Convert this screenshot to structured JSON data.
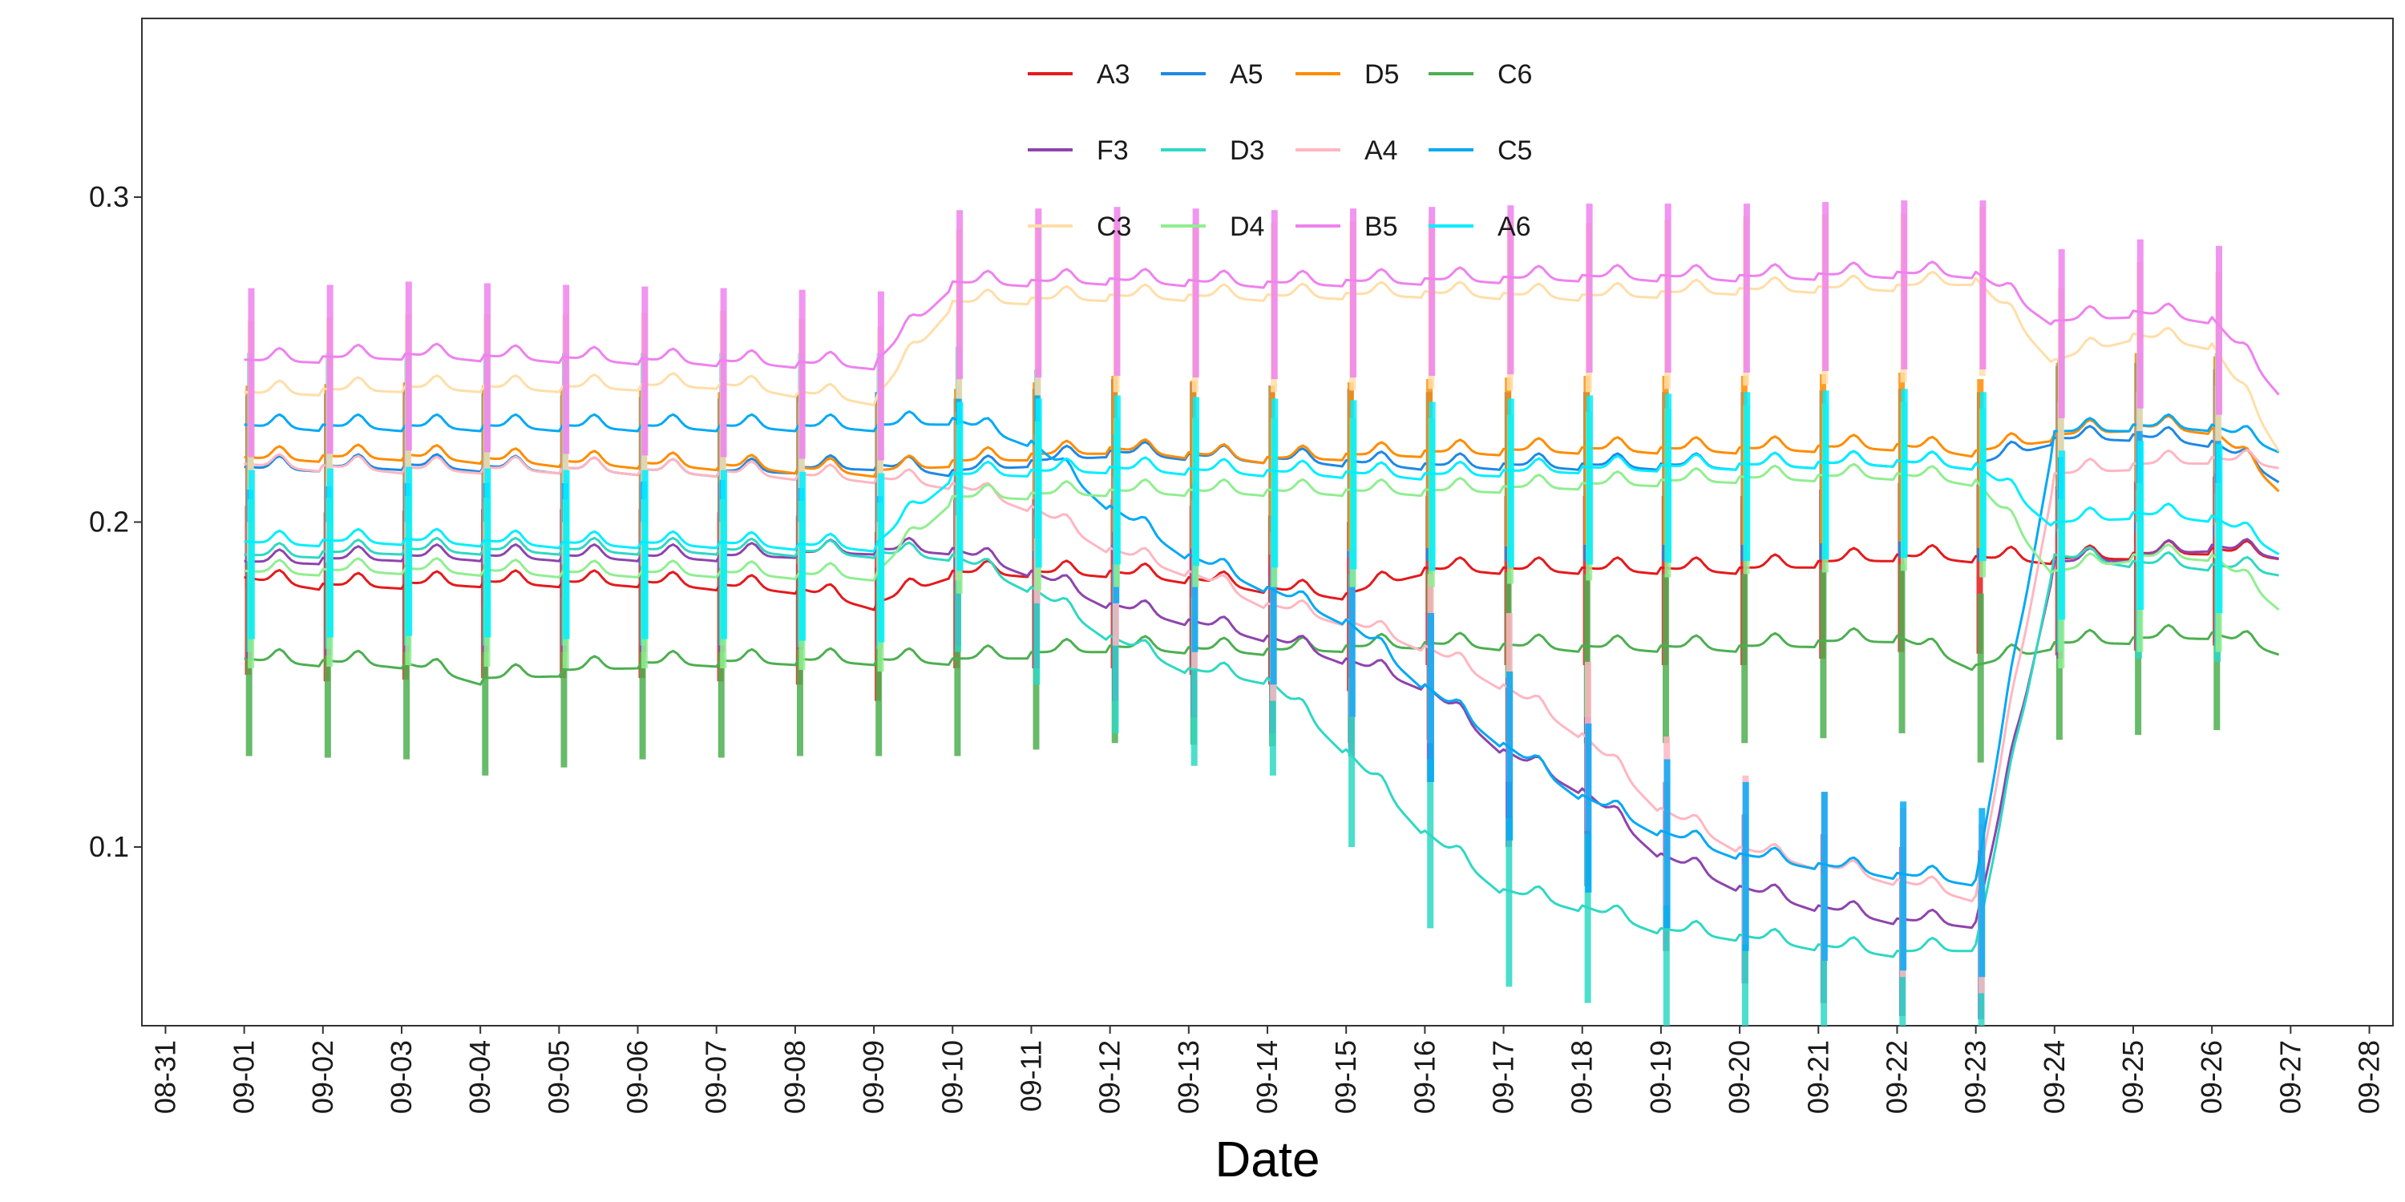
{
  "chart_data": {
    "type": "line",
    "title": "",
    "xlabel": "Date",
    "ylabel": "",
    "xlim": [
      "08-31",
      "09-28"
    ],
    "ylim": [
      0.045,
      0.355
    ],
    "x_ticks": [
      "08-31",
      "09-01",
      "09-02",
      "09-03",
      "09-04",
      "09-05",
      "09-06",
      "09-07",
      "09-08",
      "09-09",
      "09-10",
      "09-11",
      "09-12",
      "09-13",
      "09-14",
      "09-15",
      "09-16",
      "09-17",
      "09-18",
      "09-19",
      "09-20",
      "09-21",
      "09-22",
      "09-23",
      "09-24",
      "09-25",
      "09-26",
      "09-27",
      "09-28"
    ],
    "y_ticks": [
      0.1,
      0.2,
      0.3
    ],
    "y_tick_labels": [
      "0.1",
      "0.2",
      "0.3"
    ],
    "grid": false,
    "legend_position": "top",
    "series": [
      {
        "name": "A3",
        "color": "#e41a1c",
        "x": [
          "09-01",
          "09-02",
          "09-04",
          "09-06",
          "09-08",
          "09-09",
          "09-10",
          "09-12",
          "09-13",
          "09-14",
          "09-15",
          "09-16",
          "09-18",
          "09-20",
          "09-22",
          "09-24",
          "09-26",
          "09-27"
        ],
        "values": [
          0.183,
          0.181,
          0.182,
          0.182,
          0.18,
          0.175,
          0.185,
          0.185,
          0.183,
          0.18,
          0.178,
          0.186,
          0.186,
          0.186,
          0.19,
          0.189,
          0.192,
          0.19
        ]
      },
      {
        "name": "A5",
        "color": "#1e88e5",
        "x": [
          "09-01",
          "09-03",
          "09-05",
          "09-07",
          "09-09",
          "09-10",
          "09-12",
          "09-14",
          "09-16",
          "09-18",
          "09-20",
          "09-22",
          "09-23",
          "09-24",
          "09-25",
          "09-26",
          "09-27"
        ],
        "values": [
          0.217,
          0.218,
          0.217,
          0.216,
          0.218,
          0.216,
          0.222,
          0.22,
          0.218,
          0.218,
          0.218,
          0.219,
          0.218,
          0.226,
          0.227,
          0.225,
          0.212
        ]
      },
      {
        "name": "D5",
        "color": "#ff8c00",
        "x": [
          "09-01",
          "09-03",
          "09-05",
          "09-07",
          "09-09",
          "09-10",
          "09-12",
          "09-14",
          "09-16",
          "09-18",
          "09-20",
          "09-22",
          "09-23",
          "09-24",
          "09-25",
          "09-26",
          "09-27"
        ],
        "values": [
          0.22,
          0.221,
          0.219,
          0.218,
          0.216,
          0.219,
          0.223,
          0.22,
          0.222,
          0.223,
          0.223,
          0.224,
          0.222,
          0.227,
          0.23,
          0.229,
          0.208
        ]
      },
      {
        "name": "C6",
        "color": "#4caf50",
        "x": [
          "09-01",
          "09-03",
          "09-04",
          "09-06",
          "09-08",
          "09-10",
          "09-12",
          "09-14",
          "09-16",
          "09-18",
          "09-20",
          "09-22",
          "09-23",
          "09-24",
          "09-26",
          "09-27"
        ],
        "values": [
          0.158,
          0.157,
          0.152,
          0.157,
          0.158,
          0.158,
          0.162,
          0.161,
          0.163,
          0.162,
          0.162,
          0.165,
          0.156,
          0.163,
          0.166,
          0.16
        ]
      },
      {
        "name": "F3",
        "color": "#8e44ad",
        "x": [
          "09-01",
          "09-03",
          "09-05",
          "09-07",
          "09-09",
          "09-10",
          "09-11",
          "09-12",
          "09-13",
          "09-14",
          "09-15",
          "09-16",
          "09-17",
          "09-18",
          "09-19",
          "09-20",
          "09-21",
          "09-22",
          "09-23",
          "09-24",
          "09-25",
          "09-26",
          "09-27"
        ],
        "values": [
          0.188,
          0.19,
          0.19,
          0.19,
          0.192,
          0.192,
          0.185,
          0.175,
          0.17,
          0.165,
          0.158,
          0.15,
          0.13,
          0.118,
          0.098,
          0.088,
          0.082,
          0.078,
          0.077,
          0.188,
          0.19,
          0.193,
          0.19
        ]
      },
      {
        "name": "D3",
        "color": "#2ed8c3",
        "x": [
          "09-01",
          "09-03",
          "09-05",
          "09-07",
          "09-09",
          "09-10",
          "09-11",
          "09-12",
          "09-13",
          "09-14",
          "09-15",
          "09-16",
          "09-17",
          "09-18",
          "09-19",
          "09-20",
          "09-21",
          "09-22",
          "09-23",
          "09-24",
          "09-25",
          "09-26",
          "09-27"
        ],
        "values": [
          0.19,
          0.192,
          0.192,
          0.192,
          0.191,
          0.19,
          0.18,
          0.165,
          0.155,
          0.152,
          0.13,
          0.105,
          0.087,
          0.082,
          0.075,
          0.073,
          0.07,
          0.068,
          0.07,
          0.19,
          0.188,
          0.187,
          0.185
        ]
      },
      {
        "name": "A4",
        "color": "#ffb6c1",
        "x": [
          "09-01",
          "09-03",
          "09-05",
          "09-07",
          "09-09",
          "09-10",
          "09-11",
          "09-12",
          "09-13",
          "09-14",
          "09-15",
          "09-16",
          "09-17",
          "09-18",
          "09-19",
          "09-20",
          "09-21",
          "09-22",
          "09-23",
          "09-24",
          "09-25",
          "09-26",
          "09-27"
        ],
        "values": [
          0.218,
          0.217,
          0.217,
          0.216,
          0.214,
          0.212,
          0.205,
          0.192,
          0.185,
          0.175,
          0.17,
          0.162,
          0.15,
          0.135,
          0.112,
          0.1,
          0.095,
          0.09,
          0.085,
          0.215,
          0.218,
          0.22,
          0.218
        ]
      },
      {
        "name": "C5",
        "color": "#03a9f4",
        "x": [
          "09-01",
          "09-03",
          "09-05",
          "09-07",
          "09-09",
          "09-10",
          "09-11",
          "09-12",
          "09-13",
          "09-14",
          "09-15",
          "09-16",
          "09-17",
          "09-18",
          "09-19",
          "09-20",
          "09-21",
          "09-22",
          "09-23",
          "09-24",
          "09-25",
          "09-26",
          "09-27"
        ],
        "values": [
          0.23,
          0.23,
          0.23,
          0.23,
          0.23,
          0.232,
          0.225,
          0.205,
          0.19,
          0.18,
          0.17,
          0.15,
          0.132,
          0.116,
          0.105,
          0.098,
          0.095,
          0.092,
          0.09,
          0.228,
          0.23,
          0.23,
          0.222
        ]
      },
      {
        "name": "C3",
        "color": "#ffdea8",
        "x": [
          "09-01",
          "09-03",
          "09-05",
          "09-07",
          "09-09",
          "09-10",
          "09-12",
          "09-14",
          "09-16",
          "09-18",
          "09-20",
          "09-22",
          "09-23",
          "09-24",
          "09-25",
          "09-26",
          "09-27"
        ],
        "values": [
          0.24,
          0.242,
          0.242,
          0.243,
          0.238,
          0.268,
          0.27,
          0.27,
          0.271,
          0.27,
          0.272,
          0.273,
          0.275,
          0.25,
          0.258,
          0.255,
          0.218
        ]
      },
      {
        "name": "D4",
        "color": "#90ee90",
        "x": [
          "09-01",
          "09-03",
          "09-05",
          "09-07",
          "09-09",
          "09-10",
          "09-12",
          "09-14",
          "09-16",
          "09-18",
          "09-20",
          "09-22",
          "09-23",
          "09-24",
          "09-25",
          "09-26",
          "09-27"
        ],
        "values": [
          0.185,
          0.186,
          0.185,
          0.185,
          0.184,
          0.208,
          0.21,
          0.21,
          0.21,
          0.212,
          0.214,
          0.215,
          0.213,
          0.185,
          0.19,
          0.19,
          0.172
        ]
      },
      {
        "name": "B5",
        "color": "#ee82ee",
        "x": [
          "09-01",
          "09-03",
          "09-05",
          "09-07",
          "09-09",
          "09-10",
          "09-12",
          "09-14",
          "09-16",
          "09-18",
          "09-20",
          "09-22",
          "09-23",
          "09-24",
          "09-25",
          "09-26",
          "09-27"
        ],
        "values": [
          0.25,
          0.252,
          0.251,
          0.25,
          0.249,
          0.274,
          0.275,
          0.274,
          0.275,
          0.276,
          0.276,
          0.277,
          0.277,
          0.262,
          0.265,
          0.263,
          0.237
        ]
      },
      {
        "name": "A6",
        "color": "#00eeff",
        "x": [
          "09-01",
          "09-03",
          "09-05",
          "09-07",
          "09-09",
          "09-10",
          "09-12",
          "09-14",
          "09-16",
          "09-18",
          "09-20",
          "09-22",
          "09-23",
          "09-24",
          "09-25",
          "09-26",
          "09-27"
        ],
        "values": [
          0.194,
          0.195,
          0.194,
          0.194,
          0.193,
          0.215,
          0.217,
          0.216,
          0.215,
          0.217,
          0.218,
          0.219,
          0.218,
          0.2,
          0.203,
          0.202,
          0.19
        ]
      }
    ]
  }
}
